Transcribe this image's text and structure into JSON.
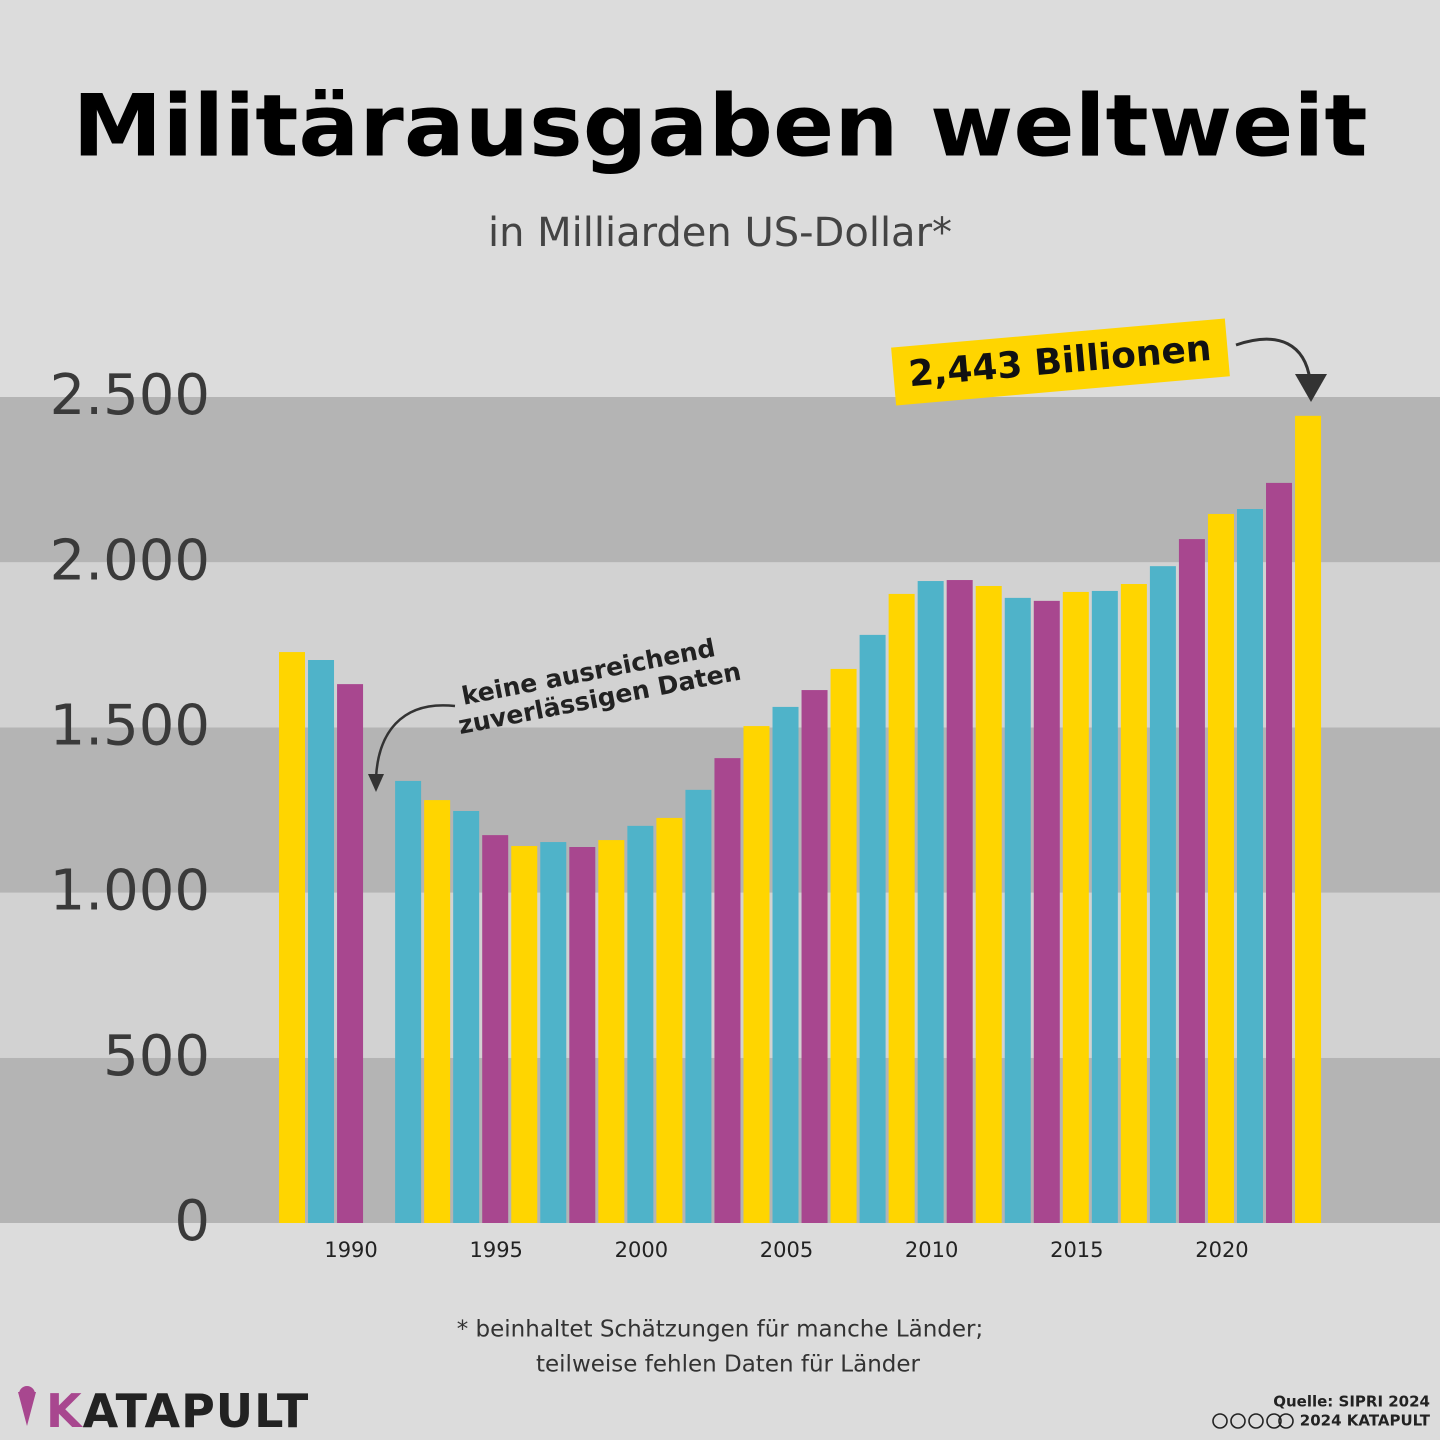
{
  "chart_data": {
    "type": "bar",
    "title": "Militärausgaben weltweit",
    "subtitle": "in Milliarden US-Dollar*",
    "categories": [
      null,
      null,
      "1990",
      null,
      null,
      null,
      null,
      "1995",
      null,
      null,
      null,
      null,
      "2000",
      null,
      null,
      null,
      null,
      "2005",
      null,
      null,
      null,
      null,
      "2010",
      null,
      null,
      null,
      null,
      "2015",
      null,
      null,
      null,
      null,
      "2020",
      null,
      null,
      null
    ],
    "values": [
      1728,
      1704,
      1631,
      null,
      1338,
      1280,
      1247,
      1174,
      1141,
      1153,
      1138,
      1159,
      1202,
      1226,
      1311,
      1407,
      1504,
      1562,
      1613,
      1677,
      1780,
      1904,
      1943,
      1946,
      1928,
      1892,
      1883,
      1910,
      1913,
      1934,
      1988,
      2070,
      2146,
      2161,
      2240,
      2443
    ],
    "colors": [
      "#ffd500",
      "#4fb3c9",
      "#a8478f",
      null,
      "#4fb3c9",
      "#ffd500",
      "#4fb3c9",
      "#a8478f",
      "#ffd500",
      "#4fb3c9",
      "#a8478f",
      "#ffd500",
      "#4fb3c9",
      "#ffd500",
      "#4fb3c9",
      "#a8478f",
      "#ffd500",
      "#4fb3c9",
      "#a8478f",
      "#ffd500",
      "#4fb3c9",
      "#ffd500",
      "#4fb3c9",
      "#a8478f",
      "#ffd500",
      "#4fb3c9",
      "#a8478f",
      "#ffd500",
      "#4fb3c9",
      "#ffd500",
      "#4fb3c9",
      "#a8478f",
      "#ffd500",
      "#4fb3c9",
      "#a8478f",
      "#ffd500"
    ],
    "ylim": [
      0,
      2500
    ],
    "yticks": [
      0,
      500,
      {
        "value": 1000,
        "label": "1.000"
      },
      {
        "value": 1500,
        "label": "1.500"
      },
      {
        "value": 2000,
        "label": "2.000"
      },
      {
        "value": 2500,
        "label": "2.500"
      }
    ],
    "annotations": [
      "2,443 Billionen",
      "keine ausreichend",
      "zuverlässigen Daten"
    ],
    "footnote": [
      "* beinhaltet Schätzungen für manche Länder;",
      "teilweise fehlen Daten für Länder"
    ],
    "logo": "KATAPULT",
    "source": "Quelle: SIPRI 2024",
    "credit": "2024 KATAPULT"
  }
}
